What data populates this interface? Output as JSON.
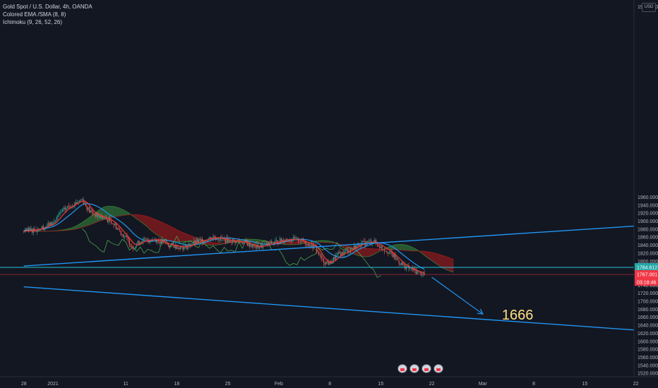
{
  "legend": {
    "symbol": "Gold Spot / U.S. Dollar, 4h, OANDA",
    "ema": "Colored EMA /SMA (8, 8)",
    "ichimoku": "Ichimoku (9, 26, 52, 26)"
  },
  "currency_badge": "USD",
  "colors": {
    "background": "#131722",
    "grid": "#1e222d",
    "up": "#26a69a",
    "down": "#ef5350",
    "trendline": "#2196f3",
    "price_line": "#f23645",
    "support_line": "#26c6da",
    "cloud_up": "#388e3c",
    "cloud_down": "#b71c1c",
    "lagging": "#4caf50",
    "kijun": "#2196f3",
    "target_label": "#ffe082"
  },
  "chart_data": {
    "type": "line",
    "title": "Gold Spot / U.S. Dollar, 4h, OANDA",
    "ylim": [
      1508,
      1990
    ],
    "y_ticks": [
      1520,
      1540,
      1560,
      1580,
      1600,
      1620,
      1640,
      1660,
      1680,
      1700,
      1720,
      1740,
      1760,
      1780,
      1800,
      1820,
      1840,
      1860,
      1880,
      1900,
      1920,
      1940,
      1960
    ],
    "y_tick_labels": [
      "1520.000",
      "1540.000",
      "1560.000",
      "1580.000",
      "1600.000",
      "1620.000",
      "1640.000",
      "1660.000",
      "1680.000",
      "1700.000",
      "1720.000",
      "1740.000",
      "1760.000",
      "1780.000",
      "1800.000",
      "1820.000",
      "1840.000",
      "1860.000",
      "1880.000",
      "1900.000",
      "1920.000",
      "1940.000",
      "1960.000"
    ],
    "x_tick_labels": [
      "28",
      "2021",
      "11",
      "18",
      "25",
      "Feb",
      "8",
      "15",
      "22",
      "Mar",
      "8",
      "15",
      "22"
    ],
    "x_tick_days": [
      -4,
      0,
      10,
      17,
      24,
      31,
      38,
      45,
      52,
      59,
      66,
      73,
      80
    ],
    "price_label": "1767.001",
    "price_level": 1767.0,
    "countdown": "03:18:46",
    "support_label": "1784.612",
    "support_level": 1784.6,
    "top_right_label": "1960.000",
    "target_label": "1666",
    "grid": false,
    "series": [
      {
        "name": "Close",
        "x": [
          -4,
          -2,
          0,
          1,
          2,
          3,
          4,
          5,
          6,
          8,
          10,
          11,
          12,
          14,
          16,
          18,
          20,
          22,
          24,
          26,
          28,
          30,
          32,
          34,
          36,
          37,
          38,
          39,
          40,
          42,
          44,
          45,
          46,
          47,
          48,
          49,
          50,
          51
        ],
        "values": [
          1875,
          1880,
          1895,
          1920,
          1935,
          1945,
          1955,
          1925,
          1915,
          1900,
          1858,
          1835,
          1850,
          1855,
          1840,
          1835,
          1850,
          1860,
          1852,
          1848,
          1835,
          1845,
          1855,
          1852,
          1835,
          1800,
          1795,
          1815,
          1822,
          1842,
          1850,
          1835,
          1825,
          1808,
          1790,
          1781,
          1773,
          1767
        ]
      }
    ],
    "trendlines": [
      {
        "x": [
          -4,
          80
        ],
        "y": [
          1788,
          1888
        ]
      },
      {
        "x": [
          -4,
          80
        ],
        "y": [
          1736,
          1628
        ]
      }
    ],
    "projection_arrow": {
      "x": [
        52,
        59
      ],
      "y": [
        1760,
        1668
      ]
    }
  }
}
